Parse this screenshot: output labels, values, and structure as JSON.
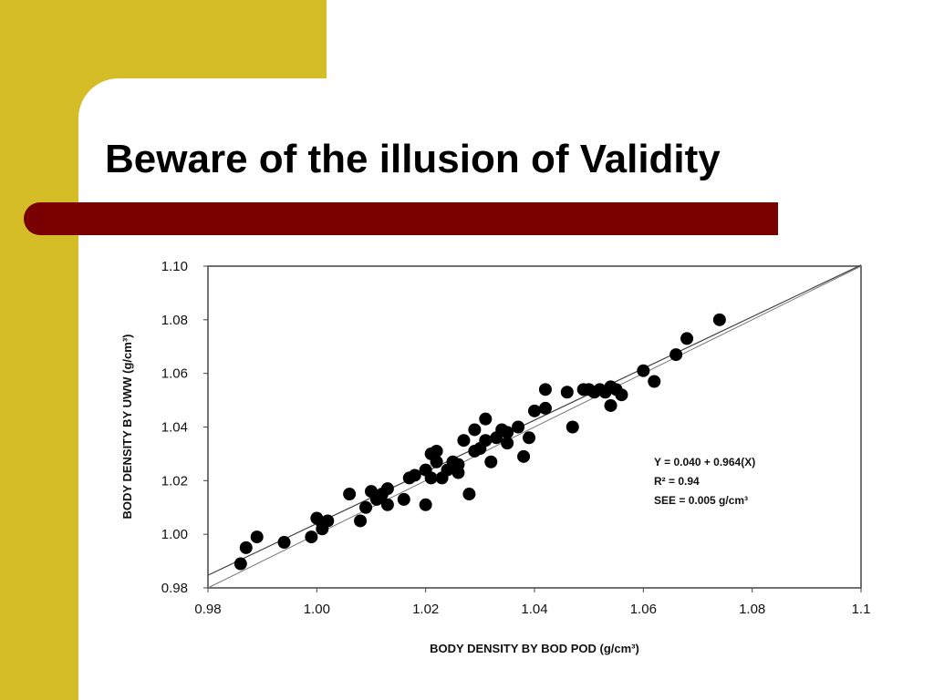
{
  "slide": {
    "title": "Beware of the illusion of Validity",
    "accent_yellow": "#d4bd26",
    "accent_maroon": "#7a0000"
  },
  "chart_data": {
    "type": "scatter",
    "xlabel": "BODY DENSITY BY BOD POD (g/cm³)",
    "ylabel": "BODY DENSITY BY UWW (g/cm³)",
    "xlim": [
      0.98,
      1.1
    ],
    "ylim": [
      0.98,
      1.1
    ],
    "x_ticks": [
      "0.98",
      "1.00",
      "1.02",
      "1.04",
      "1.06",
      "1.08",
      "1.1"
    ],
    "y_ticks": [
      "0.98",
      "1.00",
      "1.02",
      "1.04",
      "1.06",
      "1.08",
      "1.10"
    ],
    "grid": false,
    "annotations": [
      "Y = 0.040 + 0.964(X)",
      "R² = 0.94",
      "SEE = 0.005 g/cm³"
    ],
    "regression": {
      "intercept": 0.04,
      "slope": 0.964
    },
    "identity_line": true,
    "marker_color": "#000000",
    "points": [
      [
        0.986,
        0.989
      ],
      [
        0.987,
        0.995
      ],
      [
        0.989,
        0.999
      ],
      [
        0.994,
        0.997
      ],
      [
        0.999,
        0.999
      ],
      [
        1.0,
        1.006
      ],
      [
        1.001,
        1.002
      ],
      [
        1.001,
        1.004
      ],
      [
        1.002,
        1.005
      ],
      [
        1.006,
        1.015
      ],
      [
        1.008,
        1.005
      ],
      [
        1.009,
        1.01
      ],
      [
        1.01,
        1.016
      ],
      [
        1.011,
        1.013
      ],
      [
        1.012,
        1.015
      ],
      [
        1.013,
        1.017
      ],
      [
        1.013,
        1.011
      ],
      [
        1.016,
        1.013
      ],
      [
        1.017,
        1.021
      ],
      [
        1.018,
        1.022
      ],
      [
        1.02,
        1.011
      ],
      [
        1.02,
        1.024
      ],
      [
        1.021,
        1.03
      ],
      [
        1.021,
        1.021
      ],
      [
        1.022,
        1.027
      ],
      [
        1.022,
        1.031
      ],
      [
        1.023,
        1.021
      ],
      [
        1.024,
        1.024
      ],
      [
        1.025,
        1.027
      ],
      [
        1.025,
        1.025
      ],
      [
        1.026,
        1.026
      ],
      [
        1.026,
        1.023
      ],
      [
        1.027,
        1.035
      ],
      [
        1.028,
        1.015
      ],
      [
        1.029,
        1.031
      ],
      [
        1.029,
        1.039
      ],
      [
        1.03,
        1.032
      ],
      [
        1.031,
        1.043
      ],
      [
        1.031,
        1.035
      ],
      [
        1.032,
        1.027
      ],
      [
        1.033,
        1.036
      ],
      [
        1.034,
        1.039
      ],
      [
        1.035,
        1.034
      ],
      [
        1.035,
        1.038
      ],
      [
        1.037,
        1.04
      ],
      [
        1.038,
        1.029
      ],
      [
        1.039,
        1.036
      ],
      [
        1.04,
        1.046
      ],
      [
        1.042,
        1.054
      ],
      [
        1.042,
        1.047
      ],
      [
        1.046,
        1.053
      ],
      [
        1.047,
        1.04
      ],
      [
        1.049,
        1.054
      ],
      [
        1.05,
        1.054
      ],
      [
        1.051,
        1.053
      ],
      [
        1.052,
        1.054
      ],
      [
        1.053,
        1.053
      ],
      [
        1.054,
        1.048
      ],
      [
        1.054,
        1.055
      ],
      [
        1.055,
        1.054
      ],
      [
        1.056,
        1.052
      ],
      [
        1.06,
        1.061
      ],
      [
        1.062,
        1.057
      ],
      [
        1.066,
        1.067
      ],
      [
        1.068,
        1.073
      ],
      [
        1.074,
        1.08
      ]
    ]
  }
}
